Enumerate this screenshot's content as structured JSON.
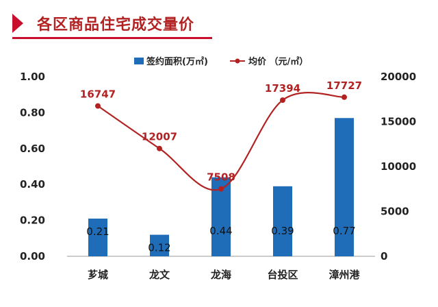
{
  "title": "各区商品住宅成交量价",
  "colors": {
    "bar": "#1f6cb8",
    "line": "#b22222",
    "accent": "#c8102e"
  },
  "chart_data": {
    "type": "bar",
    "categories": [
      "芗城",
      "龙文",
      "龙海",
      "台投区",
      "漳州港"
    ],
    "series": [
      {
        "name": "签约面积(万㎡)",
        "type": "bar",
        "axis": "left",
        "values": [
          0.21,
          0.12,
          0.44,
          0.39,
          0.77
        ],
        "labels": [
          "0.21",
          "0.12",
          "0.44",
          "0.39",
          "0.77"
        ]
      },
      {
        "name": "均价 （元/㎡）",
        "type": "line",
        "axis": "right",
        "values": [
          16747,
          12007,
          7508,
          17394,
          17727
        ],
        "labels": [
          "16747",
          "12007",
          "7508",
          "17394",
          "17727"
        ]
      }
    ],
    "y_left": {
      "min": 0,
      "max": 1.0,
      "ticks": [
        "0.00",
        "0.20",
        "0.40",
        "0.60",
        "0.80",
        "1.00"
      ]
    },
    "y_right": {
      "min": 0,
      "max": 20000,
      "ticks": [
        "0",
        "5000",
        "10000",
        "15000",
        "20000"
      ]
    },
    "legend_position": "top",
    "grid": false
  }
}
